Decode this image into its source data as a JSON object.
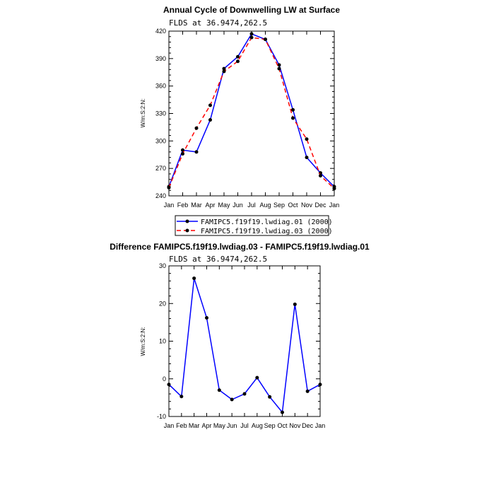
{
  "chart_data": [
    {
      "type": "line",
      "title": "Annual Cycle of Downwelling LW at Surface",
      "subtitle": "FLDS at 36.9474,262.5",
      "ylabel": "W/m:S:2:N:",
      "categories": [
        "Jan",
        "Feb",
        "Mar",
        "Apr",
        "May",
        "Jun",
        "Jul",
        "Aug",
        "Sep",
        "Oct",
        "Nov",
        "Dec",
        "Jan"
      ],
      "ylim": [
        240,
        420
      ],
      "yticks": [
        240,
        270,
        300,
        330,
        360,
        390,
        420
      ],
      "series": [
        {
          "name": "FAMIPC5.f19f19.lwdiag.01 (2000)",
          "color": "#0000ff",
          "dash": "solid",
          "values": [
            250,
            290,
            288,
            323,
            379,
            392,
            417,
            411,
            383,
            334,
            282,
            265,
            250
          ]
        },
        {
          "name": "FAMIPC5.f19f19.lwdiag.03 (2000)",
          "color": "#ff0000",
          "dash": "dashed",
          "values": [
            249,
            286,
            314,
            339,
            376,
            387,
            413,
            411,
            379,
            325,
            302,
            262,
            248
          ]
        }
      ]
    },
    {
      "type": "line",
      "title": "Difference FAMIPC5.f19f19.lwdiag.03 - FAMIPC5.f19f19.lwdiag.01",
      "subtitle": "FLDS at 36.9474,262.5",
      "ylabel": "W/m:S:2:N:",
      "categories": [
        "Jan",
        "Feb",
        "Mar",
        "Apr",
        "May",
        "Jun",
        "Jul",
        "Aug",
        "Sep",
        "Oct",
        "Nov",
        "Dec",
        "Jan"
      ],
      "ylim": [
        -10,
        30
      ],
      "yticks": [
        -10,
        0,
        10,
        20,
        30
      ],
      "series": [
        {
          "color": "#0000ff",
          "dash": "solid",
          "values": [
            -1.5,
            -4.7,
            26.7,
            16.2,
            -3,
            -5.5,
            -4,
            0.3,
            -4.8,
            -8.9,
            19.8,
            -3.3,
            -1.5
          ]
        }
      ]
    }
  ]
}
